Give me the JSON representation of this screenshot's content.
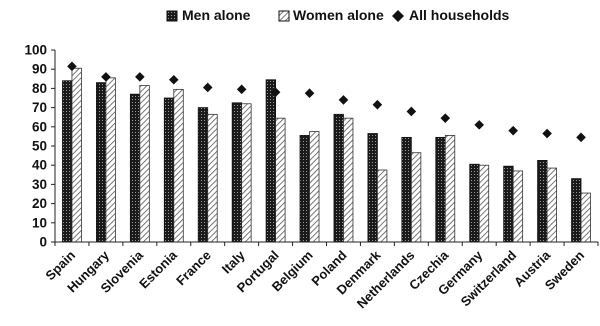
{
  "chart_data": {
    "type": "bar",
    "title": "",
    "xlabel": "",
    "ylabel": "",
    "ylim": [
      0,
      100
    ],
    "yticks": [
      0,
      10,
      20,
      30,
      40,
      50,
      60,
      70,
      80,
      90,
      100
    ],
    "grid": false,
    "legend": "top-center",
    "categories": [
      "Spain",
      "Hungary",
      "Slovenia",
      "Estonia",
      "France",
      "Italy",
      "Portugal",
      "Belgium",
      "Poland",
      "Denmark",
      "Netherlands",
      "Czechia",
      "Germany",
      "Switzerland",
      "Austria",
      "Sweden"
    ],
    "series": [
      {
        "name": "Men alone",
        "type": "bar",
        "pattern": "dark-dotted",
        "values": [
          84,
          83,
          77,
          75,
          70,
          72.5,
          84.5,
          55.5,
          66.5,
          56.5,
          54.5,
          54.5,
          40.5,
          39.5,
          42.5,
          33
        ]
      },
      {
        "name": "Women alone",
        "type": "bar",
        "pattern": "diagonal-hatch",
        "values": [
          90.5,
          85.5,
          81.5,
          79.5,
          66.5,
          72,
          64.5,
          57.5,
          64.5,
          37.5,
          46.5,
          55.5,
          40,
          37,
          38.5,
          25.5
        ]
      },
      {
        "name": "All households",
        "type": "marker",
        "marker": "diamond",
        "values": [
          91.5,
          86,
          86,
          84.5,
          80.5,
          79.5,
          78,
          77.5,
          74,
          71.5,
          68,
          64.5,
          61,
          58,
          56.5,
          54.5
        ]
      }
    ]
  }
}
